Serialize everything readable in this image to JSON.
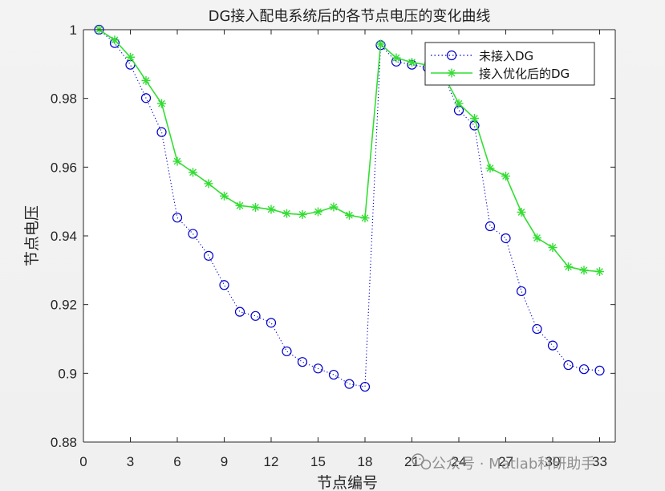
{
  "chart_data": {
    "type": "line",
    "title": "DG接入配电系统后的各节点电压的变化曲线",
    "xlabel": "节点编号",
    "ylabel": "节点电压",
    "xlim": [
      0,
      34
    ],
    "ylim": [
      0.88,
      1.0
    ],
    "xticks": [
      0,
      3,
      6,
      9,
      12,
      15,
      18,
      21,
      24,
      27,
      30,
      33
    ],
    "yticks": [
      0.88,
      0.9,
      0.92,
      0.94,
      0.96,
      0.98,
      1
    ],
    "ytick_labels": [
      "0.88",
      "0.9",
      "0.92",
      "0.94",
      "0.96",
      "0.98",
      "1"
    ],
    "legend_position": "top-right",
    "grid": false,
    "x": [
      1,
      2,
      3,
      4,
      5,
      6,
      7,
      8,
      9,
      10,
      11,
      12,
      13,
      14,
      15,
      16,
      17,
      18,
      19,
      20,
      21,
      22,
      23,
      24,
      25,
      26,
      27,
      28,
      29,
      30,
      31,
      32,
      33
    ],
    "series": [
      {
        "name": "未接入DG",
        "color": "#0000cc",
        "line_style": "dotted",
        "marker": "circle",
        "values": [
          1.0,
          0.9961,
          0.9898,
          0.9801,
          0.9702,
          0.9453,
          0.9406,
          0.9342,
          0.9257,
          0.9179,
          0.9167,
          0.9147,
          0.9064,
          0.9033,
          0.9014,
          0.8996,
          0.8969,
          0.8961,
          0.9955,
          0.9907,
          0.9898,
          0.989,
          0.9868,
          0.9765,
          0.9721,
          0.9428,
          0.9393,
          0.9239,
          0.9129,
          0.9081,
          0.9024,
          0.9012,
          0.9008
        ]
      },
      {
        "name": "接入优化后的DG",
        "color": "#33dd33",
        "line_style": "solid",
        "marker": "asterisk",
        "values": [
          1.0,
          0.997,
          0.992,
          0.9852,
          0.9785,
          0.9617,
          0.9585,
          0.9552,
          0.9516,
          0.9488,
          0.9483,
          0.9477,
          0.9465,
          0.9462,
          0.947,
          0.9484,
          0.946,
          0.9452,
          0.9958,
          0.9918,
          0.9905,
          0.9897,
          0.987,
          0.9785,
          0.9742,
          0.9597,
          0.9574,
          0.9469,
          0.9394,
          0.9366,
          0.931,
          0.93,
          0.9296
        ]
      }
    ]
  },
  "watermark": {
    "icon": "wechat-official-account-icon",
    "text": "公众号 · Matlab科研助手"
  }
}
